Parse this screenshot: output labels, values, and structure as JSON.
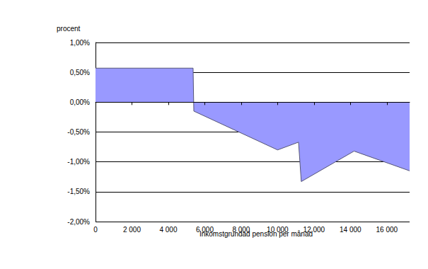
{
  "chart_data": {
    "type": "area",
    "ylabel": "procent",
    "xlabel": "Inkomstgrundad pension per månad",
    "series": [
      {
        "color": "#9999ff",
        "x": [
          0,
          5360,
          5400,
          10000,
          11150,
          11300,
          14200,
          17250
        ],
        "values": [
          0.57,
          0.57,
          -0.15,
          -0.8,
          -0.67,
          -1.33,
          -0.82,
          -1.15
        ]
      }
    ],
    "xlim": [
      0,
      17250
    ],
    "xticks": [
      0,
      {
        "value": 2000,
        "label": "2 000"
      },
      {
        "value": 4000,
        "label": "4 000"
      },
      {
        "value": 6000,
        "label": "6 000"
      },
      {
        "value": 8000,
        "label": "8 000"
      },
      {
        "value": 10000,
        "label": "10 000"
      },
      {
        "value": 12000,
        "label": "12 000"
      },
      {
        "value": 14000,
        "label": "14 000"
      },
      {
        "value": 16000,
        "label": "16 000"
      }
    ],
    "ylim": [
      -2,
      1
    ],
    "yticks": [
      {
        "value": -2,
        "label": "-2,00%"
      },
      {
        "value": -1.5,
        "label": "-1,50%"
      },
      {
        "value": -1,
        "label": "-1,00%"
      },
      {
        "value": -0.5,
        "label": "-0,50%"
      },
      {
        "value": 0,
        "label": "0,00%"
      },
      {
        "value": 0.5,
        "label": "0,50%"
      },
      {
        "value": 1,
        "label": "1,00%"
      }
    ],
    "grid": true
  }
}
